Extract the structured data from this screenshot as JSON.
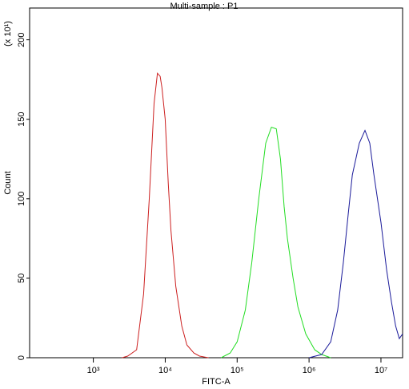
{
  "chart_data": {
    "type": "line",
    "title": "Multi-sample : P1",
    "x_label": "FITC-A",
    "y_label": "Count",
    "y_multiplier": "(x 10¹)",
    "log_x": true,
    "xlim": [
      130,
      20000000
    ],
    "ylim": [
      0,
      220
    ],
    "xticks": [
      {
        "value": 1000,
        "label": "10³"
      },
      {
        "value": 10000,
        "label": "10⁴"
      },
      {
        "value": 100000,
        "label": "10⁵"
      },
      {
        "value": 1000000,
        "label": "10⁶"
      },
      {
        "value": 10000000,
        "label": "10⁷"
      }
    ],
    "yticks": [
      0,
      50,
      100,
      150,
      200
    ],
    "series": [
      {
        "color": "#cc2020",
        "x": [
          2500,
          3000,
          4000,
          5000,
          6000,
          7000,
          7800,
          8500,
          9000,
          10000,
          11000,
          12000,
          14000,
          17000,
          20000,
          25000,
          30000,
          40000
        ],
        "values": [
          0,
          1,
          5,
          40,
          100,
          160,
          179,
          177,
          170,
          150,
          110,
          80,
          45,
          20,
          8,
          3,
          1,
          0
        ]
      },
      {
        "color": "#22dd22",
        "x": [
          60000,
          80000,
          100000,
          130000,
          160000,
          200000,
          250000,
          300000,
          350000,
          400000,
          450000,
          500000,
          600000,
          700000,
          900000,
          1200000,
          1500000,
          2000000
        ],
        "values": [
          0,
          3,
          10,
          30,
          60,
          100,
          135,
          145,
          144,
          125,
          95,
          75,
          50,
          32,
          15,
          5,
          2,
          0
        ]
      },
      {
        "color": "#1a1a9a",
        "x": [
          1000000,
          1500000,
          2000000,
          2500000,
          3000000,
          3500000,
          4000000,
          5000000,
          6000000,
          7000000,
          8000000,
          10000000,
          12000000,
          14000000,
          16000000,
          18000000,
          20000000
        ],
        "values": [
          0,
          2,
          10,
          30,
          60,
          90,
          115,
          135,
          143,
          135,
          115,
          85,
          55,
          35,
          20,
          12,
          15
        ]
      }
    ]
  }
}
